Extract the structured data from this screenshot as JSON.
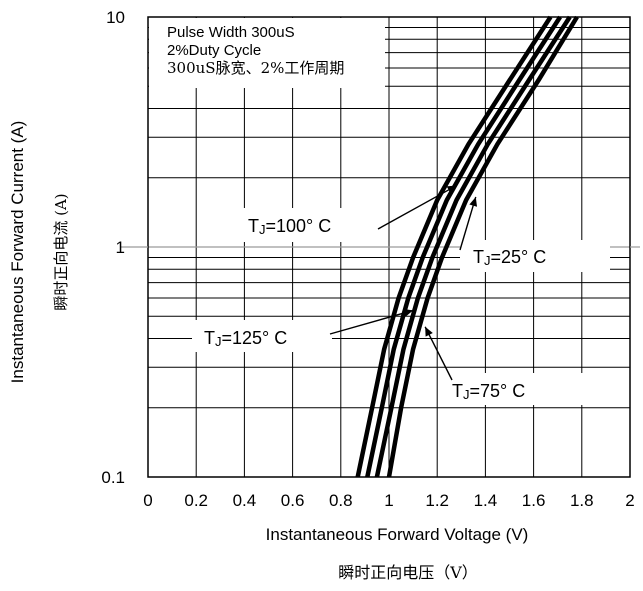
{
  "chart_data": {
    "type": "line",
    "x_axis": {
      "label": "Instantaneous Forward Voltage (V)",
      "label_cn": "瞬时正向电压（V）",
      "range": [
        0,
        2
      ],
      "ticks": [
        0,
        0.2,
        0.4,
        0.6,
        0.8,
        1,
        1.2,
        1.4,
        1.6,
        1.8,
        2
      ],
      "tick_labels": [
        "0",
        "0.2",
        "0.4",
        "0.6",
        "0.8",
        "1",
        "1.2",
        "1.4",
        "1.6",
        "1.8",
        "2"
      ]
    },
    "y_axis": {
      "label": "Instantaneous Forward Current (A)",
      "label_cn": "瞬时正向电流 (A)",
      "scale": "log",
      "range": [
        0.1,
        10
      ],
      "tick_labels": [
        "10",
        "1",
        "0.1"
      ],
      "tick_values": [
        10,
        1,
        0.1
      ]
    },
    "grid": true,
    "info_box": {
      "lines": [
        "Pulse Width 300uS",
        "2%Duty Cycle",
        "300uS脉宽、2%工作周期"
      ],
      "position": "top-left"
    },
    "series": [
      {
        "name": "TJ=125° C",
        "label_main": "T",
        "label_sub": "J",
        "label_rest": "=125° C",
        "x": [
          0.87,
          0.93,
          0.98,
          1.04,
          1.1,
          1.2,
          1.33,
          1.5,
          1.67
        ],
        "y": [
          0.1,
          0.2,
          0.36,
          0.6,
          0.9,
          1.6,
          2.8,
          5.3,
          10
        ]
      },
      {
        "name": "TJ=100° C",
        "label_main": "T",
        "label_sub": "J",
        "label_rest": "=100° C",
        "x": [
          0.91,
          0.97,
          1.02,
          1.08,
          1.14,
          1.24,
          1.37,
          1.54,
          1.71
        ],
        "y": [
          0.1,
          0.2,
          0.36,
          0.6,
          0.9,
          1.6,
          2.8,
          5.3,
          10
        ]
      },
      {
        "name": "TJ=75° C",
        "label_main": "T",
        "label_sub": "J",
        "label_rest": "=75° C",
        "x": [
          0.95,
          1.01,
          1.06,
          1.12,
          1.18,
          1.28,
          1.41,
          1.58,
          1.75
        ],
        "y": [
          0.1,
          0.2,
          0.36,
          0.6,
          0.9,
          1.6,
          2.8,
          5.3,
          10
        ]
      },
      {
        "name": "TJ=25° C",
        "label_main": "T",
        "label_sub": "J",
        "label_rest": "=25° C",
        "x": [
          1.0,
          1.05,
          1.1,
          1.16,
          1.22,
          1.32,
          1.45,
          1.62,
          1.78
        ],
        "y": [
          0.1,
          0.2,
          0.36,
          0.6,
          0.9,
          1.6,
          2.8,
          5.3,
          10
        ]
      }
    ],
    "annotations": [
      {
        "series": "TJ=100° C",
        "point": [
          1.28,
          1.85
        ]
      },
      {
        "series": "TJ=25° C",
        "point": [
          1.36,
          1.65
        ]
      },
      {
        "series": "TJ=125° C",
        "point": [
          1.1,
          0.53
        ]
      },
      {
        "series": "TJ=75° C",
        "point": [
          1.15,
          0.45
        ]
      }
    ]
  }
}
